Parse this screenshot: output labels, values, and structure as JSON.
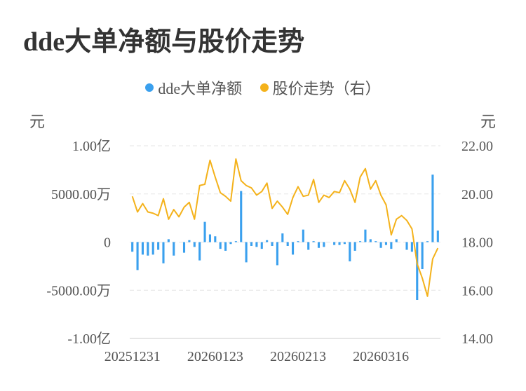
{
  "title": "dde大单净额与股价走势",
  "colors": {
    "bar": "#3aa0ee",
    "line": "#f4b21b",
    "grid": "#e5e5e5",
    "text": "#555555"
  },
  "legend": [
    {
      "label": "dde大单净额",
      "color": "#3aa0ee"
    },
    {
      "label": "股价走势（右）",
      "color": "#f4b21b"
    }
  ],
  "units": {
    "left": "元",
    "right": "元"
  },
  "chart_data": {
    "type": "bar+line",
    "x_tick_labels": [
      "20251231",
      "20260123",
      "20260213",
      "20260316"
    ],
    "y_left": {
      "ticks": [
        100000000,
        50000000,
        0,
        -50000000,
        -100000000
      ],
      "tick_labels": [
        "1.00亿",
        "5000.00万",
        "0",
        "-5000.00万",
        "-1.00亿"
      ],
      "range": [
        -100000000,
        100000000
      ]
    },
    "y_right": {
      "ticks": [
        22,
        20,
        18,
        16,
        14
      ],
      "tick_labels": [
        "22.00",
        "20.00",
        "18.00",
        "16.00",
        "14.00"
      ],
      "range": [
        14,
        22
      ]
    },
    "grid": true,
    "legend_position": "top",
    "series": [
      {
        "name": "dde大单净额",
        "kind": "bar",
        "axis": "left",
        "values": [
          -10000000,
          -29000000,
          -13000000,
          -14000000,
          -13000000,
          -8000000,
          -22000000,
          3000000,
          -14000000,
          0,
          -11000000,
          2000000,
          -5000000,
          -19000000,
          21000000,
          8000000,
          6000000,
          -7000000,
          -9000000,
          -2000000,
          1000000,
          53000000,
          -21000000,
          -4000000,
          -5000000,
          -7000000,
          2000000,
          -4000000,
          -24000000,
          9000000,
          -4000000,
          -13000000,
          1000000,
          13000000,
          -8000000,
          1000000,
          -6000000,
          -5000000,
          0,
          -3000000,
          -3000000,
          -2000000,
          -20000000,
          -9000000,
          1000000,
          13000000,
          3000000,
          1000000,
          -6000000,
          -3000000,
          -7000000,
          3000000,
          0,
          -8000000,
          -10000000,
          -60000000,
          -28000000,
          1000000,
          70000000,
          12000000
        ]
      },
      {
        "name": "股价走势（右）",
        "kind": "line",
        "axis": "right",
        "values": [
          19.9,
          19.25,
          19.6,
          19.25,
          19.2,
          19.1,
          19.8,
          18.95,
          19.35,
          19.05,
          19.45,
          19.65,
          18.95,
          20.35,
          20.4,
          21.4,
          20.7,
          20.05,
          19.9,
          19.7,
          21.45,
          20.55,
          20.35,
          20.25,
          19.95,
          20.1,
          20.45,
          19.4,
          19.7,
          19.45,
          19.15,
          19.85,
          20.3,
          19.9,
          19.95,
          20.6,
          19.65,
          19.95,
          19.85,
          20.1,
          20.05,
          20.55,
          20.2,
          19.65,
          20.7,
          21.05,
          20.2,
          20.55,
          19.95,
          19.55,
          18.3,
          18.95,
          19.1,
          18.9,
          18.55,
          17.1,
          16.5,
          15.75,
          17.3,
          17.75
        ]
      }
    ]
  }
}
